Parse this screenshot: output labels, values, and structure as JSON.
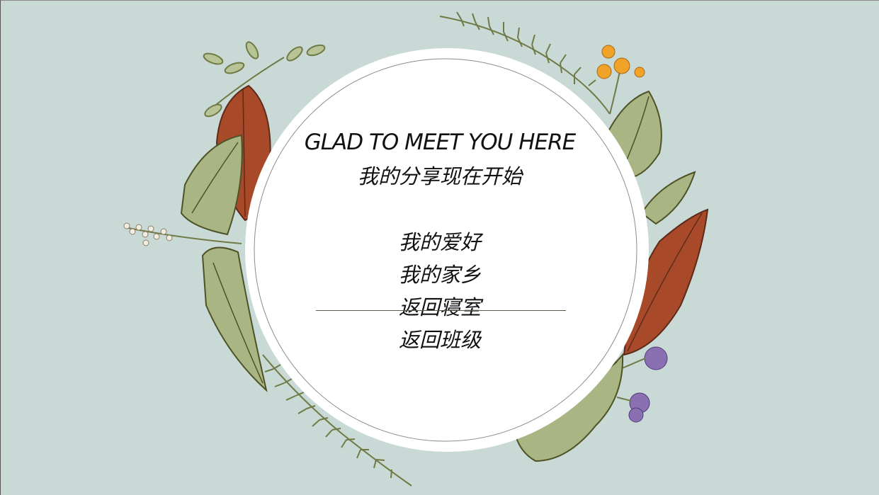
{
  "slide": {
    "title": "GLAD TO MEET YOU HERE",
    "subtitle": "我的分享现在开始",
    "menu": [
      {
        "label": "我的爱好"
      },
      {
        "label": "我的家乡"
      },
      {
        "label": "返回寝室"
      },
      {
        "label": "返回班级"
      }
    ]
  },
  "colors": {
    "background": "#c9d9d5",
    "circle": "#ffffff",
    "leaf_green": "#a9b583",
    "leaf_dark": "#6f6c2f",
    "leaf_red": "#a84a2a",
    "flower_orange": "#f0a326",
    "flower_purple": "#8a6fb3"
  },
  "decorations": [
    "fern-icon",
    "leaf-icon",
    "flower-icon",
    "berry-sprig-icon"
  ]
}
